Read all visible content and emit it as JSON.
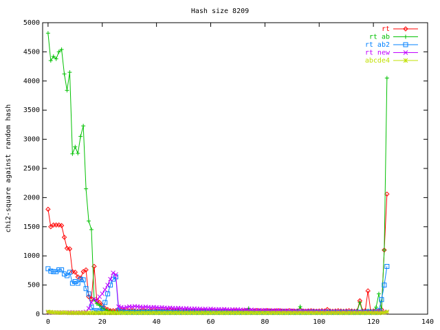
{
  "chart_data": {
    "type": "line",
    "title": "Hash size 8209",
    "y_label": "chi2-square against random hash",
    "x": [
      0,
      1,
      2,
      3,
      4,
      5,
      6,
      7,
      8,
      9,
      10,
      11,
      12,
      13,
      14,
      15,
      16,
      17,
      18,
      19,
      20,
      21,
      22,
      23,
      24,
      25,
      26,
      27,
      28,
      29,
      30,
      31,
      32,
      33,
      34,
      35,
      36,
      37,
      38,
      39,
      40,
      41,
      42,
      43,
      44,
      45,
      46,
      47,
      48,
      49,
      50,
      51,
      52,
      53,
      54,
      55,
      56,
      57,
      58,
      59,
      60,
      61,
      62,
      63,
      64,
      65,
      66,
      67,
      68,
      69,
      70,
      71,
      72,
      73,
      74,
      75,
      76,
      77,
      78,
      79,
      80,
      81,
      82,
      83,
      84,
      85,
      86,
      87,
      88,
      89,
      90,
      91,
      92,
      93,
      94,
      95,
      96,
      97,
      98,
      99,
      100,
      101,
      102,
      103,
      104,
      105,
      106,
      107,
      108,
      109,
      110,
      111,
      112,
      113,
      114,
      115,
      116,
      117,
      118,
      119,
      120,
      121,
      122,
      123,
      124,
      125
    ],
    "series": [
      {
        "name": "rt",
        "color": "#ff0000",
        "marker": "diamond",
        "values": [
          1800,
          1500,
          1530,
          1530,
          1530,
          1520,
          1320,
          1130,
          1120,
          730,
          720,
          640,
          620,
          730,
          760,
          300,
          260,
          820,
          230,
          200,
          150,
          100,
          80,
          60,
          60,
          60,
          70,
          65,
          60,
          60,
          55,
          60,
          55,
          50,
          55,
          60,
          55,
          50,
          55,
          60,
          55,
          50,
          55,
          50,
          55,
          60,
          55,
          50,
          55,
          60,
          55,
          50,
          55,
          60,
          55,
          50,
          55,
          60,
          55,
          50,
          55,
          60,
          55,
          50,
          55,
          60,
          55,
          50,
          55,
          60,
          55,
          50,
          55,
          60,
          55,
          50,
          55,
          60,
          55,
          50,
          55,
          60,
          55,
          50,
          55,
          60,
          55,
          50,
          55,
          60,
          55,
          50,
          55,
          60,
          55,
          50,
          55,
          60,
          55,
          50,
          55,
          60,
          55,
          80,
          55,
          50,
          55,
          60,
          55,
          50,
          55,
          60,
          55,
          50,
          55,
          230,
          55,
          60,
          400,
          50,
          55,
          60,
          55,
          80,
          1100,
          2060
        ]
      },
      {
        "name": "rt ab",
        "color": "#00c000",
        "marker": "plus",
        "values": [
          4820,
          4350,
          4420,
          4380,
          4500,
          4540,
          4120,
          3840,
          4150,
          2750,
          2870,
          2760,
          3050,
          3230,
          2150,
          1600,
          1450,
          250,
          180,
          150,
          100,
          80,
          60,
          50,
          40,
          40,
          45,
          40,
          50,
          35,
          40,
          45,
          50,
          40,
          35,
          40,
          45,
          50,
          40,
          35,
          45,
          40,
          50,
          45,
          40,
          35,
          40,
          45,
          50,
          40,
          35,
          45,
          40,
          50,
          45,
          40,
          35,
          40,
          45,
          50,
          40,
          35,
          45,
          40,
          50,
          45,
          40,
          35,
          40,
          45,
          50,
          40,
          45,
          60,
          100,
          40,
          45,
          40,
          50,
          35,
          40,
          45,
          50,
          40,
          35,
          40,
          45,
          50,
          40,
          35,
          45,
          40,
          50,
          130,
          40,
          35,
          40,
          45,
          50,
          40,
          35,
          45,
          40,
          50,
          45,
          40,
          35,
          40,
          45,
          50,
          40,
          35,
          45,
          40,
          50,
          200,
          40,
          45,
          60,
          50,
          40,
          120,
          350,
          60,
          1100,
          4050
        ]
      },
      {
        "name": "rt ab2",
        "color": "#0080ff",
        "marker": "square",
        "values": [
          780,
          740,
          730,
          730,
          760,
          760,
          690,
          660,
          720,
          530,
          560,
          530,
          600,
          590,
          440,
          350,
          120,
          60,
          60,
          50,
          100,
          200,
          350,
          500,
          600,
          640,
          60,
          40,
          35,
          30,
          35,
          30,
          35,
          30,
          35,
          30,
          35,
          30,
          35,
          30,
          35,
          30,
          35,
          30,
          35,
          30,
          35,
          30,
          35,
          30,
          35,
          30,
          35,
          30,
          35,
          30,
          35,
          30,
          35,
          30,
          35,
          30,
          35,
          30,
          35,
          30,
          35,
          30,
          35,
          30,
          35,
          30,
          35,
          30,
          35,
          30,
          35,
          30,
          35,
          30,
          35,
          30,
          35,
          30,
          35,
          30,
          35,
          30,
          35,
          30,
          35,
          30,
          35,
          30,
          35,
          30,
          35,
          30,
          35,
          30,
          35,
          30,
          35,
          30,
          35,
          30,
          35,
          30,
          35,
          30,
          35,
          30,
          35,
          30,
          35,
          30,
          35,
          30,
          40,
          30,
          35,
          30,
          60,
          250,
          500,
          820
        ]
      },
      {
        "name": "rt new",
        "color": "#c000ff",
        "marker": "cross",
        "values": [
          30,
          30,
          28,
          28,
          30,
          30,
          28,
          28,
          30,
          30,
          28,
          28,
          30,
          30,
          40,
          100,
          200,
          260,
          230,
          300,
          350,
          420,
          500,
          600,
          710,
          680,
          130,
          120,
          110,
          120,
          130,
          125,
          135,
          130,
          125,
          120,
          125,
          120,
          115,
          120,
          115,
          110,
          115,
          110,
          105,
          110,
          105,
          100,
          105,
          100,
          95,
          100,
          95,
          90,
          95,
          90,
          90,
          85,
          90,
          85,
          90,
          85,
          80,
          85,
          80,
          85,
          80,
          75,
          80,
          75,
          80,
          75,
          70,
          75,
          70,
          75,
          70,
          65,
          70,
          65,
          70,
          65,
          60,
          65,
          60,
          65,
          60,
          55,
          60,
          55,
          60,
          55,
          50,
          55,
          50,
          55,
          50,
          55,
          50,
          45,
          50,
          45,
          50,
          45,
          40,
          45,
          40,
          45,
          40,
          45,
          40,
          35,
          40,
          35,
          40,
          35,
          40,
          35,
          40,
          35,
          40,
          35,
          40,
          35,
          40,
          35
        ]
      },
      {
        "name": "abcde4",
        "color": "#c0e000",
        "marker": "star",
        "values": [
          40,
          35,
          30,
          30,
          25,
          25,
          30,
          25,
          20,
          25,
          20,
          25,
          20,
          25,
          20,
          25,
          20,
          25,
          20,
          25,
          20,
          25,
          20,
          25,
          20,
          25,
          20,
          25,
          20,
          25,
          20,
          25,
          20,
          25,
          20,
          25,
          20,
          25,
          20,
          25,
          20,
          25,
          20,
          25,
          20,
          25,
          20,
          25,
          20,
          25,
          20,
          25,
          20,
          25,
          20,
          25,
          20,
          25,
          20,
          25,
          20,
          25,
          20,
          25,
          20,
          25,
          20,
          25,
          20,
          25,
          20,
          25,
          20,
          25,
          20,
          25,
          20,
          25,
          20,
          25,
          20,
          25,
          20,
          25,
          20,
          25,
          20,
          25,
          20,
          25,
          20,
          25,
          20,
          25,
          20,
          25,
          20,
          25,
          20,
          25,
          20,
          25,
          20,
          25,
          20,
          25,
          20,
          25,
          20,
          25,
          20,
          25,
          20,
          25,
          20,
          25,
          20,
          25,
          20,
          25,
          20,
          25,
          20,
          25,
          30,
          40
        ]
      }
    ],
    "xlim": [
      -2,
      140
    ],
    "xticks": [
      0,
      20,
      40,
      60,
      80,
      100,
      120,
      140
    ],
    "ylim": [
      0,
      5000
    ],
    "yticks": [
      0,
      500,
      1000,
      1500,
      2000,
      2500,
      3000,
      3500,
      4000,
      4500,
      5000
    ],
    "legend": "top-right"
  }
}
